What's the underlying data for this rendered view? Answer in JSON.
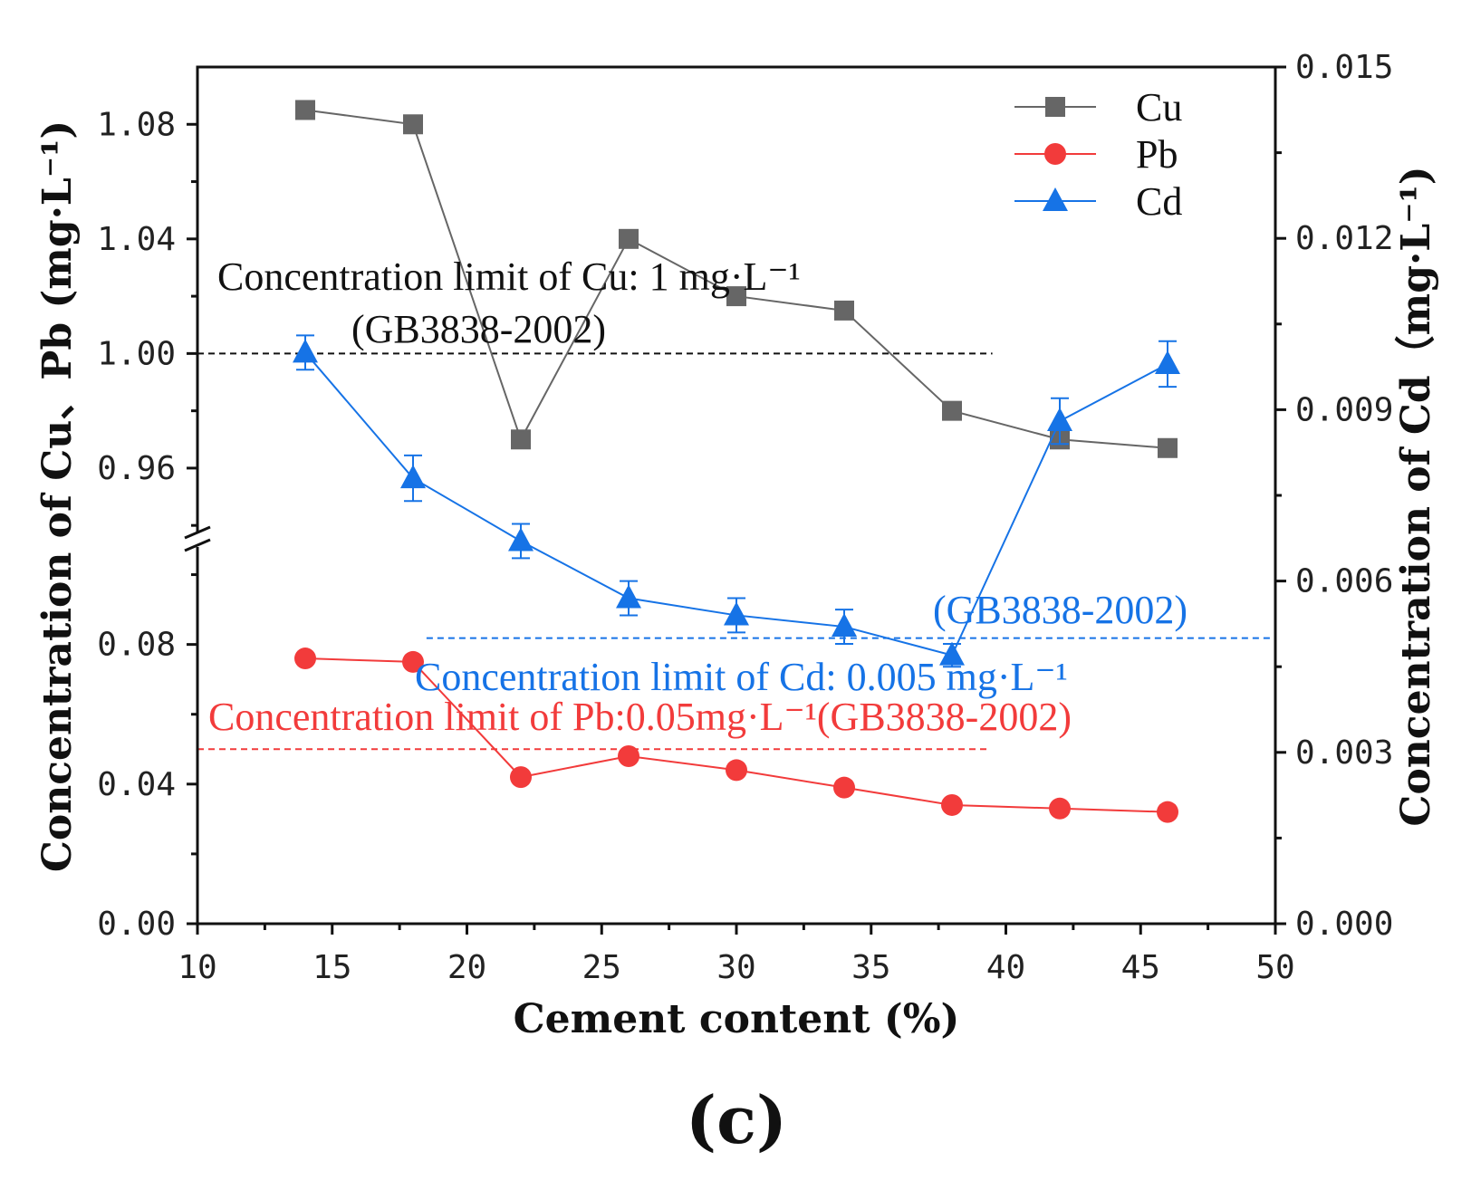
{
  "chart_data": {
    "type": "line",
    "xlabel": "Cement content (%)",
    "ylabel_left": "Concentration of Cu、Pb (mg·L⁻¹)",
    "ylabel_right": "Concentration of Cd（mg·L⁻¹)",
    "panel_label": "(c)",
    "xlim": [
      10,
      50
    ],
    "x_ticks": [
      "10",
      "15",
      "20",
      "25",
      "30",
      "35",
      "40",
      "45",
      "50"
    ],
    "left_axis": {
      "broken": true,
      "lower_range": [
        0.0,
        0.11
      ],
      "upper_range": [
        0.935,
        1.1
      ],
      "tick_labels": [
        "0.00",
        "0.04",
        "0.08",
        "0.96",
        "1.00",
        "1.04",
        "1.08"
      ]
    },
    "right_axis": {
      "ylim": [
        0.0,
        0.015
      ],
      "tick_labels": [
        "0.000",
        "0.003",
        "0.006",
        "0.009",
        "0.012",
        "0.015"
      ]
    },
    "x": [
      14,
      18,
      22,
      26,
      30,
      34,
      38,
      42,
      46
    ],
    "series": [
      {
        "name": "Cu",
        "axis": "left",
        "color": "#666666",
        "marker": "square",
        "values": [
          1.085,
          1.08,
          0.97,
          1.04,
          1.02,
          1.015,
          0.98,
          0.97,
          0.967
        ]
      },
      {
        "name": "Pb",
        "axis": "left",
        "color": "#f23b3b",
        "marker": "circle",
        "values": [
          0.076,
          0.075,
          0.042,
          0.048,
          0.044,
          0.039,
          0.034,
          0.033,
          0.032
        ]
      },
      {
        "name": "Cd",
        "axis": "right",
        "color": "#1673e6",
        "marker": "triangle",
        "values": [
          0.01,
          0.0078,
          0.0067,
          0.0057,
          0.0054,
          0.0052,
          0.0047,
          0.0088,
          0.0098
        ],
        "errors": [
          0.0003,
          0.0004,
          0.0003,
          0.0003,
          0.0003,
          0.0003,
          0.0002,
          0.0004,
          0.0004
        ]
      }
    ],
    "reference_lines": [
      {
        "name": "Cu limit",
        "axis": "left",
        "value": 1.0,
        "color": "#111111",
        "x_range": [
          10,
          39.5
        ],
        "text1": "Concentration limit of Cu: 1 mg·L⁻¹",
        "text2": "(GB3838-2002)"
      },
      {
        "name": "Cd limit",
        "axis": "right",
        "value": 0.005,
        "color": "#1673e6",
        "x_range": [
          18.5,
          50
        ],
        "text1": "(GB3838-2002)",
        "text2": "Concentration limit of Cd: 0.005 mg·L⁻¹"
      },
      {
        "name": "Pb limit",
        "axis": "left",
        "value": 0.05,
        "color": "#f23b3b",
        "x_range": [
          10,
          39.3
        ],
        "text1": "Concentration limit of Pb:0.05mg·L⁻¹(GB3838-2002)"
      }
    ],
    "legend": {
      "position": "top-right",
      "entries": [
        "Cu",
        "Pb",
        "Cd"
      ]
    }
  }
}
